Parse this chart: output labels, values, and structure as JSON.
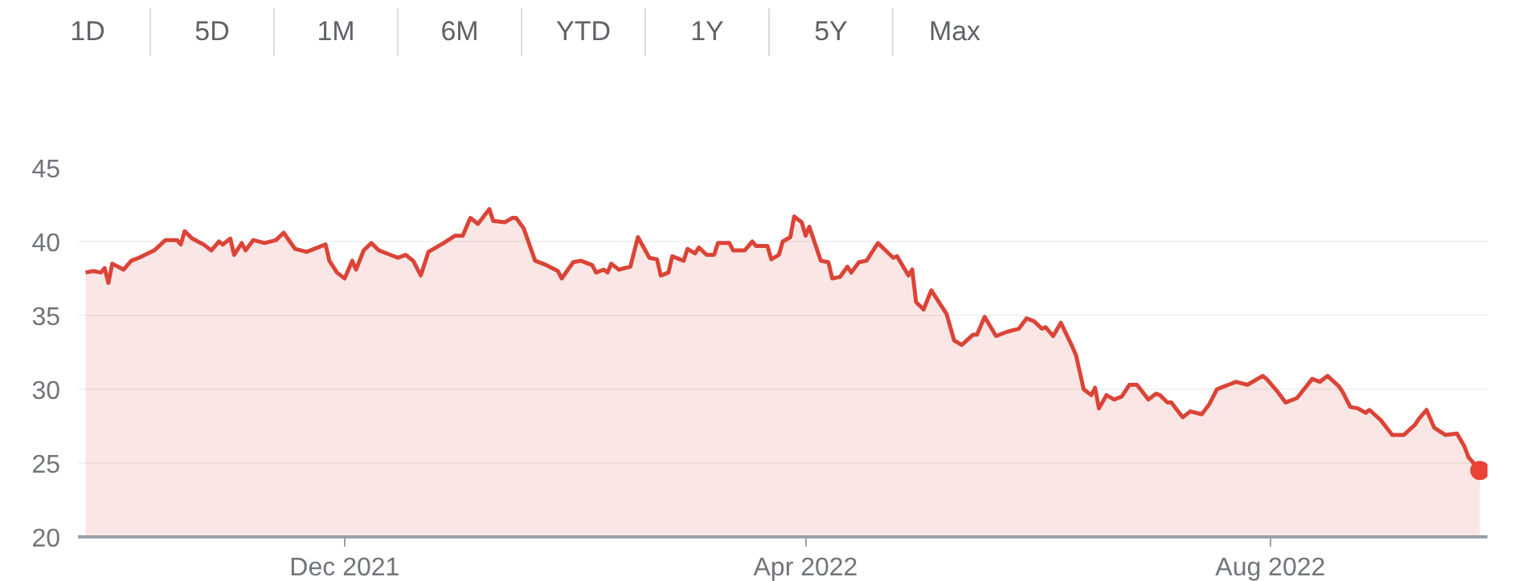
{
  "chart_data": {
    "type": "area",
    "annotations": [
      "1D",
      "5D",
      "1M",
      "6M",
      "YTD",
      "1Y",
      "5Y",
      "Max"
    ],
    "x": [
      "2021-09-24",
      "2021-09-26",
      "2021-09-28",
      "2021-09-29",
      "2021-09-30",
      "2021-10-01",
      "2021-10-04",
      "2021-10-06",
      "2021-10-08",
      "2021-10-12",
      "2021-10-15",
      "2021-10-18",
      "2021-10-19",
      "2021-10-20",
      "2021-10-22",
      "2021-10-25",
      "2021-10-27",
      "2021-10-29",
      "2021-10-30",
      "2021-11-01",
      "2021-11-02",
      "2021-11-04",
      "2021-11-05",
      "2021-11-07",
      "2021-11-10",
      "2021-11-13",
      "2021-11-15",
      "2021-11-18",
      "2021-11-21",
      "2021-11-26",
      "2021-11-27",
      "2021-11-29",
      "2021-12-01",
      "2021-12-03",
      "2021-12-04",
      "2021-12-06",
      "2021-12-08",
      "2021-12-10",
      "2021-12-15",
      "2021-12-17",
      "2021-12-19",
      "2021-12-21",
      "2021-12-23",
      "2021-12-25",
      "2021-12-27",
      "2021-12-30",
      "2022-01-01",
      "2022-01-03",
      "2022-01-05",
      "2022-01-08",
      "2022-01-09",
      "2022-01-12",
      "2022-01-14",
      "2022-01-15",
      "2022-01-17",
      "2022-01-20",
      "2022-01-23",
      "2022-01-26",
      "2022-01-27",
      "2022-01-30",
      "2022-02-01",
      "2022-02-04",
      "2022-02-05",
      "2022-02-07",
      "2022-02-08",
      "2022-02-09",
      "2022-02-11",
      "2022-02-14",
      "2022-02-16",
      "2022-02-19",
      "2022-02-21",
      "2022-02-22",
      "2022-02-24",
      "2022-02-25",
      "2022-02-28",
      "2022-03-01",
      "2022-03-03",
      "2022-03-04",
      "2022-03-06",
      "2022-03-08",
      "2022-03-09",
      "2022-03-12",
      "2022-03-13",
      "2022-03-16",
      "2022-03-18",
      "2022-03-19",
      "2022-03-22",
      "2022-03-23",
      "2022-03-25",
      "2022-03-26",
      "2022-03-28",
      "2022-03-29",
      "2022-03-31",
      "2022-04-01",
      "2022-04-02",
      "2022-04-05",
      "2022-04-07",
      "2022-04-08",
      "2022-04-10",
      "2022-04-12",
      "2022-04-13",
      "2022-04-15",
      "2022-04-17",
      "2022-04-20",
      "2022-04-22",
      "2022-04-24",
      "2022-04-25",
      "2022-04-28",
      "2022-04-29",
      "2022-04-30",
      "2022-05-02",
      "2022-05-04",
      "2022-05-08",
      "2022-05-10",
      "2022-05-12",
      "2022-05-15",
      "2022-05-16",
      "2022-05-18",
      "2022-05-21",
      "2022-05-24",
      "2022-05-27",
      "2022-05-29",
      "2022-05-31",
      "2022-06-02",
      "2022-06-03",
      "2022-06-05",
      "2022-06-07",
      "2022-06-10",
      "2022-06-11",
      "2022-06-13",
      "2022-06-15",
      "2022-06-16",
      "2022-06-17",
      "2022-06-19",
      "2022-06-21",
      "2022-06-23",
      "2022-06-25",
      "2022-06-27",
      "2022-06-30",
      "2022-07-02",
      "2022-07-03",
      "2022-07-05",
      "2022-07-06",
      "2022-07-09",
      "2022-07-11",
      "2022-07-14",
      "2022-07-16",
      "2022-07-18",
      "2022-07-21",
      "2022-07-23",
      "2022-07-26",
      "2022-07-30",
      "2022-07-31",
      "2022-08-03",
      "2022-08-05",
      "2022-08-08",
      "2022-08-12",
      "2022-08-14",
      "2022-08-16",
      "2022-08-19",
      "2022-08-20",
      "2022-08-22",
      "2022-08-24",
      "2022-08-26",
      "2022-08-27",
      "2022-08-30",
      "2022-09-02",
      "2022-09-05",
      "2022-09-08",
      "2022-09-09",
      "2022-09-11",
      "2022-09-13",
      "2022-09-16",
      "2022-09-19",
      "2022-09-21",
      "2022-09-22",
      "2022-09-25"
    ],
    "series": [
      {
        "color": "#db4437",
        "values": [
          37.9,
          38.0,
          37.9,
          38.2,
          37.2,
          38.5,
          38.1,
          38.7,
          38.9,
          39.4,
          40.1,
          40.1,
          39.8,
          40.7,
          40.2,
          39.8,
          39.4,
          40.0,
          39.8,
          40.2,
          39.1,
          39.9,
          39.4,
          40.1,
          39.9,
          40.1,
          40.6,
          39.5,
          39.3,
          39.8,
          38.7,
          37.9,
          37.5,
          38.7,
          38.1,
          39.4,
          39.9,
          39.4,
          38.9,
          39.1,
          38.7,
          37.7,
          39.3,
          39.6,
          39.9,
          40.4,
          40.4,
          41.6,
          41.2,
          42.2,
          41.4,
          41.3,
          41.6,
          41.6,
          40.9,
          38.7,
          38.4,
          38.0,
          37.5,
          38.6,
          38.7,
          38.4,
          37.9,
          38.1,
          37.9,
          38.5,
          38.1,
          38.3,
          40.3,
          38.9,
          38.8,
          37.7,
          37.9,
          39.0,
          38.7,
          39.5,
          39.2,
          39.6,
          39.1,
          39.1,
          39.9,
          39.9,
          39.4,
          39.4,
          40.0,
          39.7,
          39.7,
          38.8,
          39.1,
          40.0,
          40.3,
          41.7,
          41.3,
          40.4,
          41.0,
          38.7,
          38.6,
          37.5,
          37.6,
          38.3,
          37.9,
          38.6,
          38.7,
          39.9,
          39.4,
          38.9,
          39.0,
          37.7,
          38.1,
          35.9,
          35.4,
          36.7,
          35.1,
          33.3,
          33.0,
          33.7,
          33.7,
          34.9,
          33.6,
          33.9,
          34.1,
          34.8,
          34.6,
          34.1,
          34.2,
          33.6,
          34.5,
          32.9,
          32.3,
          30.0,
          29.6,
          30.1,
          28.7,
          29.6,
          29.3,
          29.5,
          30.3,
          30.3,
          29.3,
          29.7,
          29.6,
          29.1,
          29.1,
          28.1,
          28.5,
          28.3,
          29.0,
          30.0,
          30.3,
          30.5,
          30.3,
          30.9,
          30.7,
          29.8,
          29.1,
          29.4,
          30.7,
          30.5,
          30.9,
          30.2,
          29.8,
          28.8,
          28.7,
          28.4,
          28.6,
          27.9,
          26.9,
          26.9,
          27.6,
          28.0,
          28.6,
          27.4,
          26.9,
          27.0,
          26.1,
          25.4,
          24.5
        ]
      },
      {
        "type": "scatter",
        "color": "#ea4335",
        "x": [
          "2022-09-25"
        ],
        "values": [
          24.5
        ]
      }
    ],
    "xlim": [
      "2021-09-22",
      "2022-09-27"
    ],
    "xticks": [
      {
        "value": "2021-12-01",
        "label": "Dec 2021"
      },
      {
        "value": "2022-04-01",
        "label": "Apr 2022"
      },
      {
        "value": "2022-08-01",
        "label": "Aug 2022"
      }
    ],
    "ylim": [
      20,
      45
    ],
    "yticks": [
      20,
      25,
      30,
      35,
      40,
      45
    ],
    "grid": "y"
  }
}
